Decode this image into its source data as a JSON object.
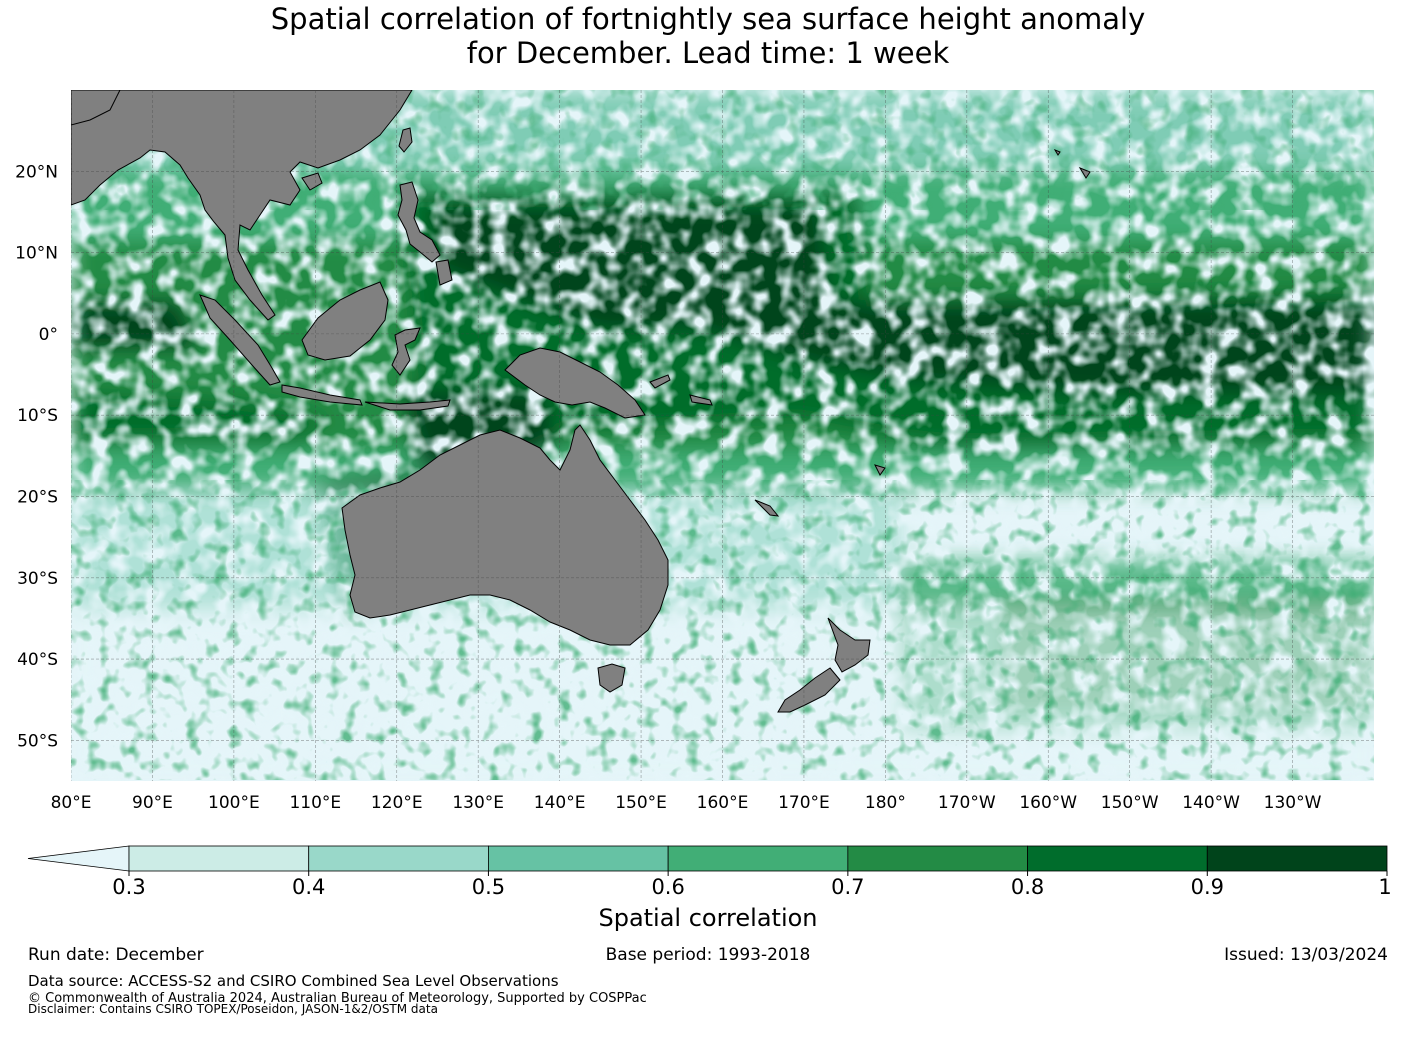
{
  "title_line1": "Spatial correlation of fortnightly sea surface height anomaly",
  "title_line2": "for December. Lead time: 1 week",
  "map": {
    "lon_labels": [
      "80°E",
      "90°E",
      "100°E",
      "110°E",
      "120°E",
      "130°E",
      "140°E",
      "150°E",
      "160°E",
      "170°E",
      "180°",
      "170°W",
      "160°W",
      "150°W",
      "140°W",
      "130°W"
    ],
    "lat_labels": [
      "20°N",
      "10°N",
      "0°",
      "10°S",
      "20°S",
      "30°S",
      "40°S",
      "50°S"
    ],
    "lon_range": [
      80,
      240
    ],
    "lat_range": [
      -55,
      30
    ],
    "land_color": "#808080",
    "gridlines": true
  },
  "colorbar": {
    "title": "Spatial correlation",
    "ticks": [
      "0.3",
      "0.4",
      "0.5",
      "0.6",
      "0.7",
      "0.8",
      "0.9",
      "1"
    ],
    "bins": [
      0.3,
      0.4,
      0.5,
      0.6,
      0.7,
      0.8,
      0.9,
      1.0
    ],
    "colors": [
      "#ccece6",
      "#99d8c9",
      "#66c2a4",
      "#41ae76",
      "#238b45",
      "#006d2c",
      "#00441b"
    ],
    "under_color": "#e5f5f9"
  },
  "run_date": "Run date: December",
  "base_period": "Base period: 1993-2018",
  "issued": "Issued: 13/03/2024",
  "data_source": "Data source: ACCESS-S2 and CSIRO Combined Sea Level Observations",
  "copyright": "© Commonwealth of Australia 2024, Australian Bureau of Meteorology, Supported by COSPPac",
  "disclaimer": "Disclaimer: Contains CSIRO TOPEX/Poseidon, JASON-1&2/OSTM data"
}
